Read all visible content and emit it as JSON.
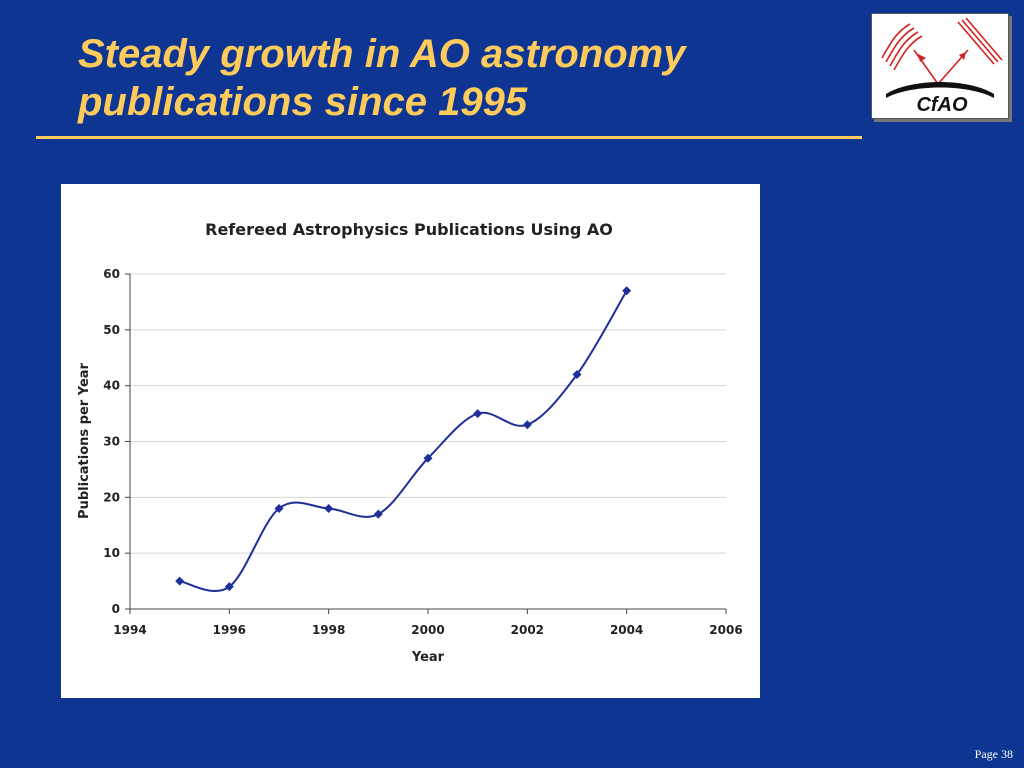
{
  "slide": {
    "title_line1": "Steady growth in AO astronomy",
    "title_line2": "publications since 1995",
    "page_label": "Page 38"
  },
  "logo": {
    "text": "CfAO",
    "icon": "cfao-logo-icon"
  },
  "colors": {
    "background": "#0e3592",
    "title": "#ffcc5c",
    "series": "#1f2f9a",
    "logo_red": "#d42020"
  },
  "chart_data": {
    "type": "line",
    "title": "Refereed Astrophysics Publications Using AO",
    "xlabel": "Year",
    "ylabel": "Publications per Year",
    "xlim": [
      1994,
      2006
    ],
    "ylim": [
      0,
      60
    ],
    "xticks": [
      1994,
      1996,
      1998,
      2000,
      2002,
      2004,
      2006
    ],
    "yticks": [
      0,
      10,
      20,
      30,
      40,
      50,
      60
    ],
    "grid": "horizontal",
    "legend": "none",
    "smooth": true,
    "marker": "diamond",
    "series": [
      {
        "x": [
          1995,
          1996,
          1997,
          1998,
          1999,
          2000,
          2001,
          2002,
          2003,
          2004
        ],
        "y": [
          5,
          4,
          18,
          18,
          17,
          27,
          35,
          33,
          42,
          57
        ]
      }
    ]
  }
}
